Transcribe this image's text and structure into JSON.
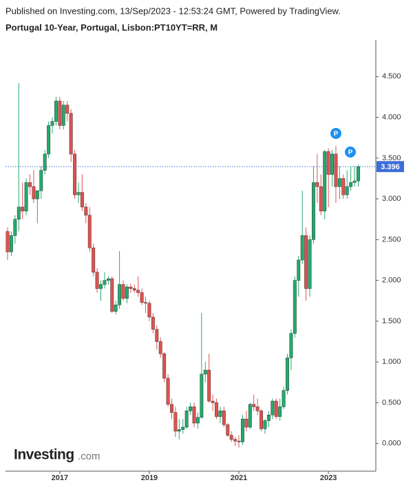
{
  "chart_data": {
    "type": "candlestick",
    "header": "Published on Investing.com, 13/Sep/2023 - 12:53:24 GMT, Powered by TradingView.",
    "title": "Portugal 10-Year, Portugal, Lisbon:PT10YT=RR, M",
    "watermark": [
      "Investing",
      ".com"
    ],
    "annotations": [
      "P",
      "P"
    ],
    "categories": [
      null,
      null,
      null,
      null,
      null,
      null,
      null,
      null,
      null,
      null,
      null,
      null,
      null,
      null,
      "2017",
      null,
      null,
      null,
      null,
      null,
      null,
      null,
      null,
      null,
      null,
      null,
      null,
      null,
      null,
      null,
      null,
      null,
      null,
      null,
      null,
      null,
      null,
      null,
      "2019",
      null,
      null,
      null,
      null,
      null,
      null,
      null,
      null,
      null,
      null,
      null,
      null,
      null,
      null,
      null,
      null,
      null,
      null,
      null,
      null,
      null,
      null,
      null,
      "2021",
      null,
      null,
      null,
      null,
      null,
      null,
      null,
      null,
      null,
      null,
      null,
      null,
      null,
      null,
      null,
      null,
      null,
      null,
      null,
      null,
      null,
      null,
      null,
      "2023",
      null,
      null,
      null,
      null,
      null,
      null,
      null,
      null
    ],
    "open": [
      2.6,
      2.35,
      2.55,
      2.75,
      2.9,
      2.85,
      3.2,
      3.15,
      3.0,
      3.1,
      3.35,
      3.55,
      3.9,
      3.95,
      4.2,
      3.9,
      4.15,
      4.05,
      3.55,
      3.05,
      3.08,
      2.9,
      2.8,
      2.4,
      2.1,
      1.9,
      1.95,
      2.0,
      2.02,
      1.62,
      1.7,
      1.95,
      1.78,
      1.92,
      1.9,
      1.88,
      1.85,
      1.73,
      1.72,
      1.55,
      1.4,
      1.25,
      1.1,
      0.8,
      0.48,
      0.38,
      0.15,
      0.17,
      0.2,
      0.4,
      0.45,
      0.25,
      0.32,
      0.85,
      0.9,
      0.52,
      0.5,
      0.33,
      0.4,
      0.23,
      0.1,
      0.05,
      0.03,
      0.02,
      0.3,
      0.2,
      0.48,
      0.45,
      0.4,
      0.18,
      0.28,
      0.35,
      0.52,
      0.33,
      0.45,
      0.65,
      1.05,
      1.35,
      2.0,
      2.25,
      2.55,
      1.9,
      2.5,
      3.2,
      3.15,
      2.85,
      3.58,
      3.3,
      3.55,
      3.15,
      3.25,
      3.05,
      3.15,
      3.2,
      3.22
    ],
    "high": [
      2.65,
      2.6,
      2.8,
      4.42,
      3.2,
      3.25,
      3.3,
      3.35,
      3.1,
      3.4,
      3.6,
      3.95,
      4.0,
      4.25,
      4.25,
      4.2,
      4.2,
      4.1,
      3.6,
      3.2,
      3.3,
      2.95,
      2.9,
      2.45,
      2.15,
      2.0,
      2.1,
      2.05,
      2.05,
      1.75,
      2.36,
      2.0,
      1.95,
      1.96,
      1.95,
      2.05,
      1.9,
      1.8,
      1.75,
      1.6,
      1.45,
      1.3,
      1.12,
      0.85,
      0.55,
      0.45,
      0.3,
      0.3,
      0.45,
      0.5,
      0.5,
      0.38,
      1.6,
      1.0,
      1.1,
      0.6,
      0.55,
      0.45,
      0.45,
      0.25,
      0.15,
      0.08,
      0.1,
      0.35,
      0.4,
      0.5,
      0.6,
      0.55,
      0.42,
      0.3,
      0.4,
      0.55,
      0.55,
      0.55,
      0.7,
      1.1,
      1.4,
      2.05,
      2.3,
      3.1,
      2.65,
      2.55,
      3.4,
      3.55,
      3.3,
      3.6,
      3.62,
      3.6,
      3.65,
      3.4,
      3.3,
      3.35,
      3.4,
      3.4,
      3.42
    ],
    "low": [
      2.25,
      2.3,
      2.45,
      2.6,
      2.75,
      2.8,
      3.05,
      2.95,
      2.7,
      3.0,
      3.3,
      3.5,
      3.8,
      3.9,
      3.85,
      3.85,
      3.95,
      3.45,
      3.0,
      2.95,
      2.85,
      2.7,
      2.35,
      2.05,
      1.85,
      1.75,
      1.9,
      1.95,
      1.6,
      1.58,
      1.65,
      1.75,
      1.72,
      1.85,
      1.85,
      1.8,
      1.7,
      1.6,
      1.5,
      1.35,
      1.15,
      1.05,
      0.75,
      0.45,
      0.3,
      0.08,
      0.05,
      0.12,
      0.18,
      0.35,
      0.2,
      0.18,
      0.3,
      0.75,
      0.5,
      0.4,
      0.3,
      0.25,
      0.2,
      0.08,
      0.02,
      -0.03,
      -0.05,
      -0.02,
      0.15,
      0.18,
      0.4,
      0.35,
      0.15,
      0.12,
      0.2,
      0.3,
      0.3,
      0.28,
      0.42,
      0.6,
      0.9,
      1.3,
      1.8,
      2.2,
      1.75,
      1.8,
      2.45,
      2.95,
      2.8,
      2.75,
      2.9,
      3.15,
      2.95,
      3.0,
      3.0,
      3.0,
      3.1,
      3.15,
      3.15
    ],
    "close": [
      2.35,
      2.55,
      2.75,
      2.9,
      2.85,
      3.2,
      3.15,
      3.0,
      3.1,
      3.35,
      3.55,
      3.9,
      3.95,
      4.2,
      3.9,
      4.15,
      4.05,
      3.55,
      3.05,
      3.08,
      2.9,
      2.8,
      2.4,
      2.1,
      1.9,
      1.95,
      2.0,
      2.02,
      1.62,
      1.7,
      1.95,
      1.78,
      1.92,
      1.9,
      1.88,
      1.85,
      1.73,
      1.72,
      1.55,
      1.4,
      1.25,
      1.1,
      0.8,
      0.48,
      0.38,
      0.15,
      0.17,
      0.2,
      0.4,
      0.45,
      0.25,
      0.32,
      0.85,
      0.9,
      0.52,
      0.5,
      0.33,
      0.4,
      0.23,
      0.1,
      0.05,
      0.03,
      0.02,
      0.3,
      0.2,
      0.48,
      0.45,
      0.4,
      0.18,
      0.28,
      0.35,
      0.52,
      0.33,
      0.45,
      0.65,
      1.05,
      1.35,
      2.0,
      2.25,
      2.55,
      1.9,
      2.5,
      3.2,
      3.15,
      2.85,
      3.58,
      3.3,
      3.55,
      3.15,
      3.25,
      3.05,
      3.15,
      3.2,
      3.22,
      3.396
    ],
    "up_color": "#22ab6d",
    "down_color": "#e0524f",
    "last_value": 3.396,
    "last_color": "#3d6ddb",
    "ylim": [
      -0.34,
      4.95
    ],
    "yticks": [
      {
        "value": 0,
        "label": "0.000"
      },
      {
        "value": 0.5,
        "label": "0.500"
      },
      {
        "value": 1,
        "label": "1.000"
      },
      {
        "value": 1.5,
        "label": "1.500"
      },
      {
        "value": 2,
        "label": "2.000"
      },
      {
        "value": 2.5,
        "label": "2.500"
      },
      {
        "value": 3,
        "label": "3.000"
      },
      {
        "value": 3.5,
        "label": "3.500"
      },
      {
        "value": 4,
        "label": "4.000"
      },
      {
        "value": 4.5,
        "label": "4.500"
      }
    ]
  }
}
